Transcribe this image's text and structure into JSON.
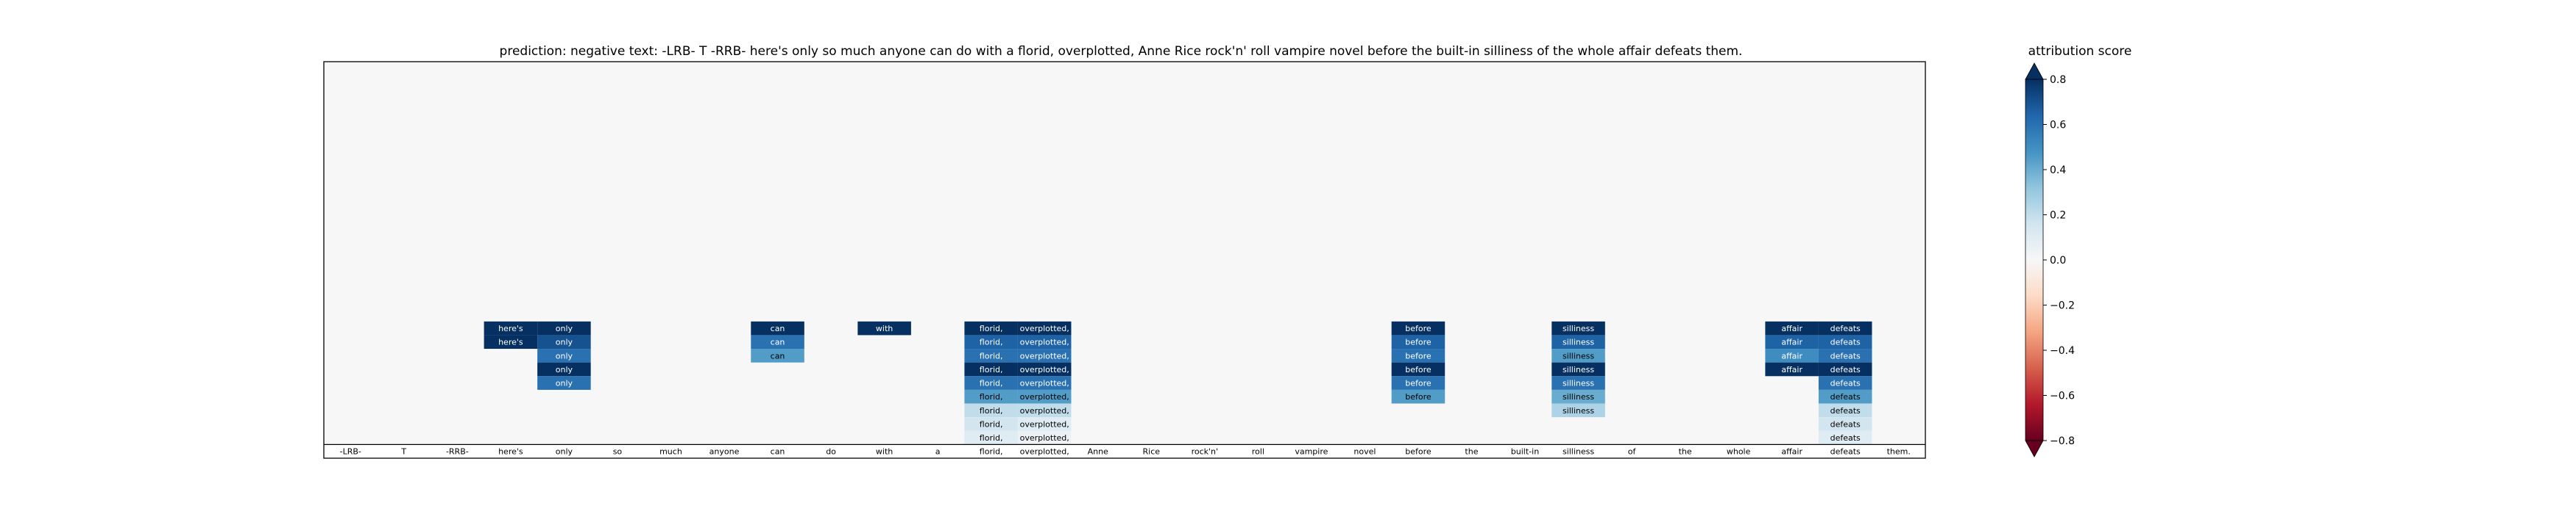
{
  "chart_data": {
    "type": "heatmap",
    "title": "prediction:  negative     text:  -LRB- T -RRB- here's only so much anyone can do with a florid, overplotted, Anne Rice rock'n' roll vampire novel before the built-in silliness of the whole affair defeats them.",
    "tokens": [
      "-LRB-",
      "T",
      "-RRB-",
      "here's",
      "only",
      "so",
      "much",
      "anyone",
      "can",
      "do",
      "with",
      "a",
      "florid,",
      "overplotted,",
      "Anne",
      "Rice",
      "rock'n'",
      "roll",
      "vampire",
      "novel",
      "before",
      "the",
      "built-in",
      "silliness",
      "of",
      "the",
      "whole",
      "affair",
      "defeats",
      "them."
    ],
    "levels": 29,
    "cells": [
      {
        "token": "here's",
        "level": 9,
        "value": 0.8
      },
      {
        "token": "here's",
        "level": 8,
        "value": 0.8
      },
      {
        "token": "only",
        "level": 9,
        "value": 0.8
      },
      {
        "token": "only",
        "level": 8,
        "value": 0.7
      },
      {
        "token": "only",
        "level": 7,
        "value": 0.6
      },
      {
        "token": "only",
        "level": 6,
        "value": 0.8
      },
      {
        "token": "only",
        "level": 5,
        "value": 0.6
      },
      {
        "token": "can",
        "level": 9,
        "value": 0.8
      },
      {
        "token": "can",
        "level": 8,
        "value": 0.6
      },
      {
        "token": "can",
        "level": 7,
        "value": 0.45
      },
      {
        "token": "with",
        "level": 9,
        "value": 0.8
      },
      {
        "token": "florid,",
        "level": 9,
        "value": 0.8
      },
      {
        "token": "florid,",
        "level": 8,
        "value": 0.65
      },
      {
        "token": "florid,",
        "level": 7,
        "value": 0.6
      },
      {
        "token": "florid,",
        "level": 6,
        "value": 0.8
      },
      {
        "token": "florid,",
        "level": 5,
        "value": 0.6
      },
      {
        "token": "florid,",
        "level": 4,
        "value": 0.45
      },
      {
        "token": "florid,",
        "level": 3,
        "value": 0.2
      },
      {
        "token": "florid,",
        "level": 2,
        "value": 0.15
      },
      {
        "token": "florid,",
        "level": 1,
        "value": 0.1
      },
      {
        "token": "overplotted,",
        "level": 9,
        "value": 0.8
      },
      {
        "token": "overplotted,",
        "level": 8,
        "value": 0.65
      },
      {
        "token": "overplotted,",
        "level": 7,
        "value": 0.6
      },
      {
        "token": "overplotted,",
        "level": 6,
        "value": 0.8
      },
      {
        "token": "overplotted,",
        "level": 5,
        "value": 0.6
      },
      {
        "token": "overplotted,",
        "level": 4,
        "value": 0.45
      },
      {
        "token": "overplotted,",
        "level": 3,
        "value": 0.2
      },
      {
        "token": "overplotted,",
        "level": 2,
        "value": 0.1
      },
      {
        "token": "overplotted,",
        "level": 1,
        "value": 0.05
      },
      {
        "token": "before",
        "level": 9,
        "value": 0.8
      },
      {
        "token": "before",
        "level": 8,
        "value": 0.65
      },
      {
        "token": "before",
        "level": 7,
        "value": 0.6
      },
      {
        "token": "before",
        "level": 6,
        "value": 0.8
      },
      {
        "token": "before",
        "level": 5,
        "value": 0.6
      },
      {
        "token": "before",
        "level": 4,
        "value": 0.45
      },
      {
        "token": "silliness",
        "level": 9,
        "value": 0.8
      },
      {
        "token": "silliness",
        "level": 8,
        "value": 0.65
      },
      {
        "token": "silliness",
        "level": 7,
        "value": 0.45
      },
      {
        "token": "silliness",
        "level": 6,
        "value": 0.8
      },
      {
        "token": "silliness",
        "level": 5,
        "value": 0.6
      },
      {
        "token": "silliness",
        "level": 4,
        "value": 0.4
      },
      {
        "token": "silliness",
        "level": 3,
        "value": 0.25
      },
      {
        "token": "affair",
        "level": 9,
        "value": 0.8
      },
      {
        "token": "affair",
        "level": 8,
        "value": 0.65
      },
      {
        "token": "affair",
        "level": 7,
        "value": 0.5
      },
      {
        "token": "affair",
        "level": 6,
        "value": 0.8
      },
      {
        "token": "defeats",
        "level": 9,
        "value": 0.8
      },
      {
        "token": "defeats",
        "level": 8,
        "value": 0.65
      },
      {
        "token": "defeats",
        "level": 7,
        "value": 0.6
      },
      {
        "token": "defeats",
        "level": 6,
        "value": 0.8
      },
      {
        "token": "defeats",
        "level": 5,
        "value": 0.6
      },
      {
        "token": "defeats",
        "level": 4,
        "value": 0.45
      },
      {
        "token": "defeats",
        "level": 3,
        "value": 0.2
      },
      {
        "token": "defeats",
        "level": 2,
        "value": 0.15
      },
      {
        "token": "defeats",
        "level": 1,
        "value": 0.1
      }
    ],
    "background_value": 0.0,
    "colorbar": {
      "label": "attribution score",
      "colormap": "RdBu",
      "range": [
        -0.8,
        0.8
      ],
      "extend": "both",
      "ticks": [
        0.8,
        0.6,
        0.4,
        0.2,
        0.0,
        -0.2,
        -0.4,
        -0.6,
        -0.8
      ],
      "tick_labels": [
        "0.8",
        "0.6",
        "0.4",
        "0.2",
        "0.0",
        "−0.2",
        "−0.4",
        "−0.6",
        "−0.8"
      ]
    },
    "grid": false
  }
}
